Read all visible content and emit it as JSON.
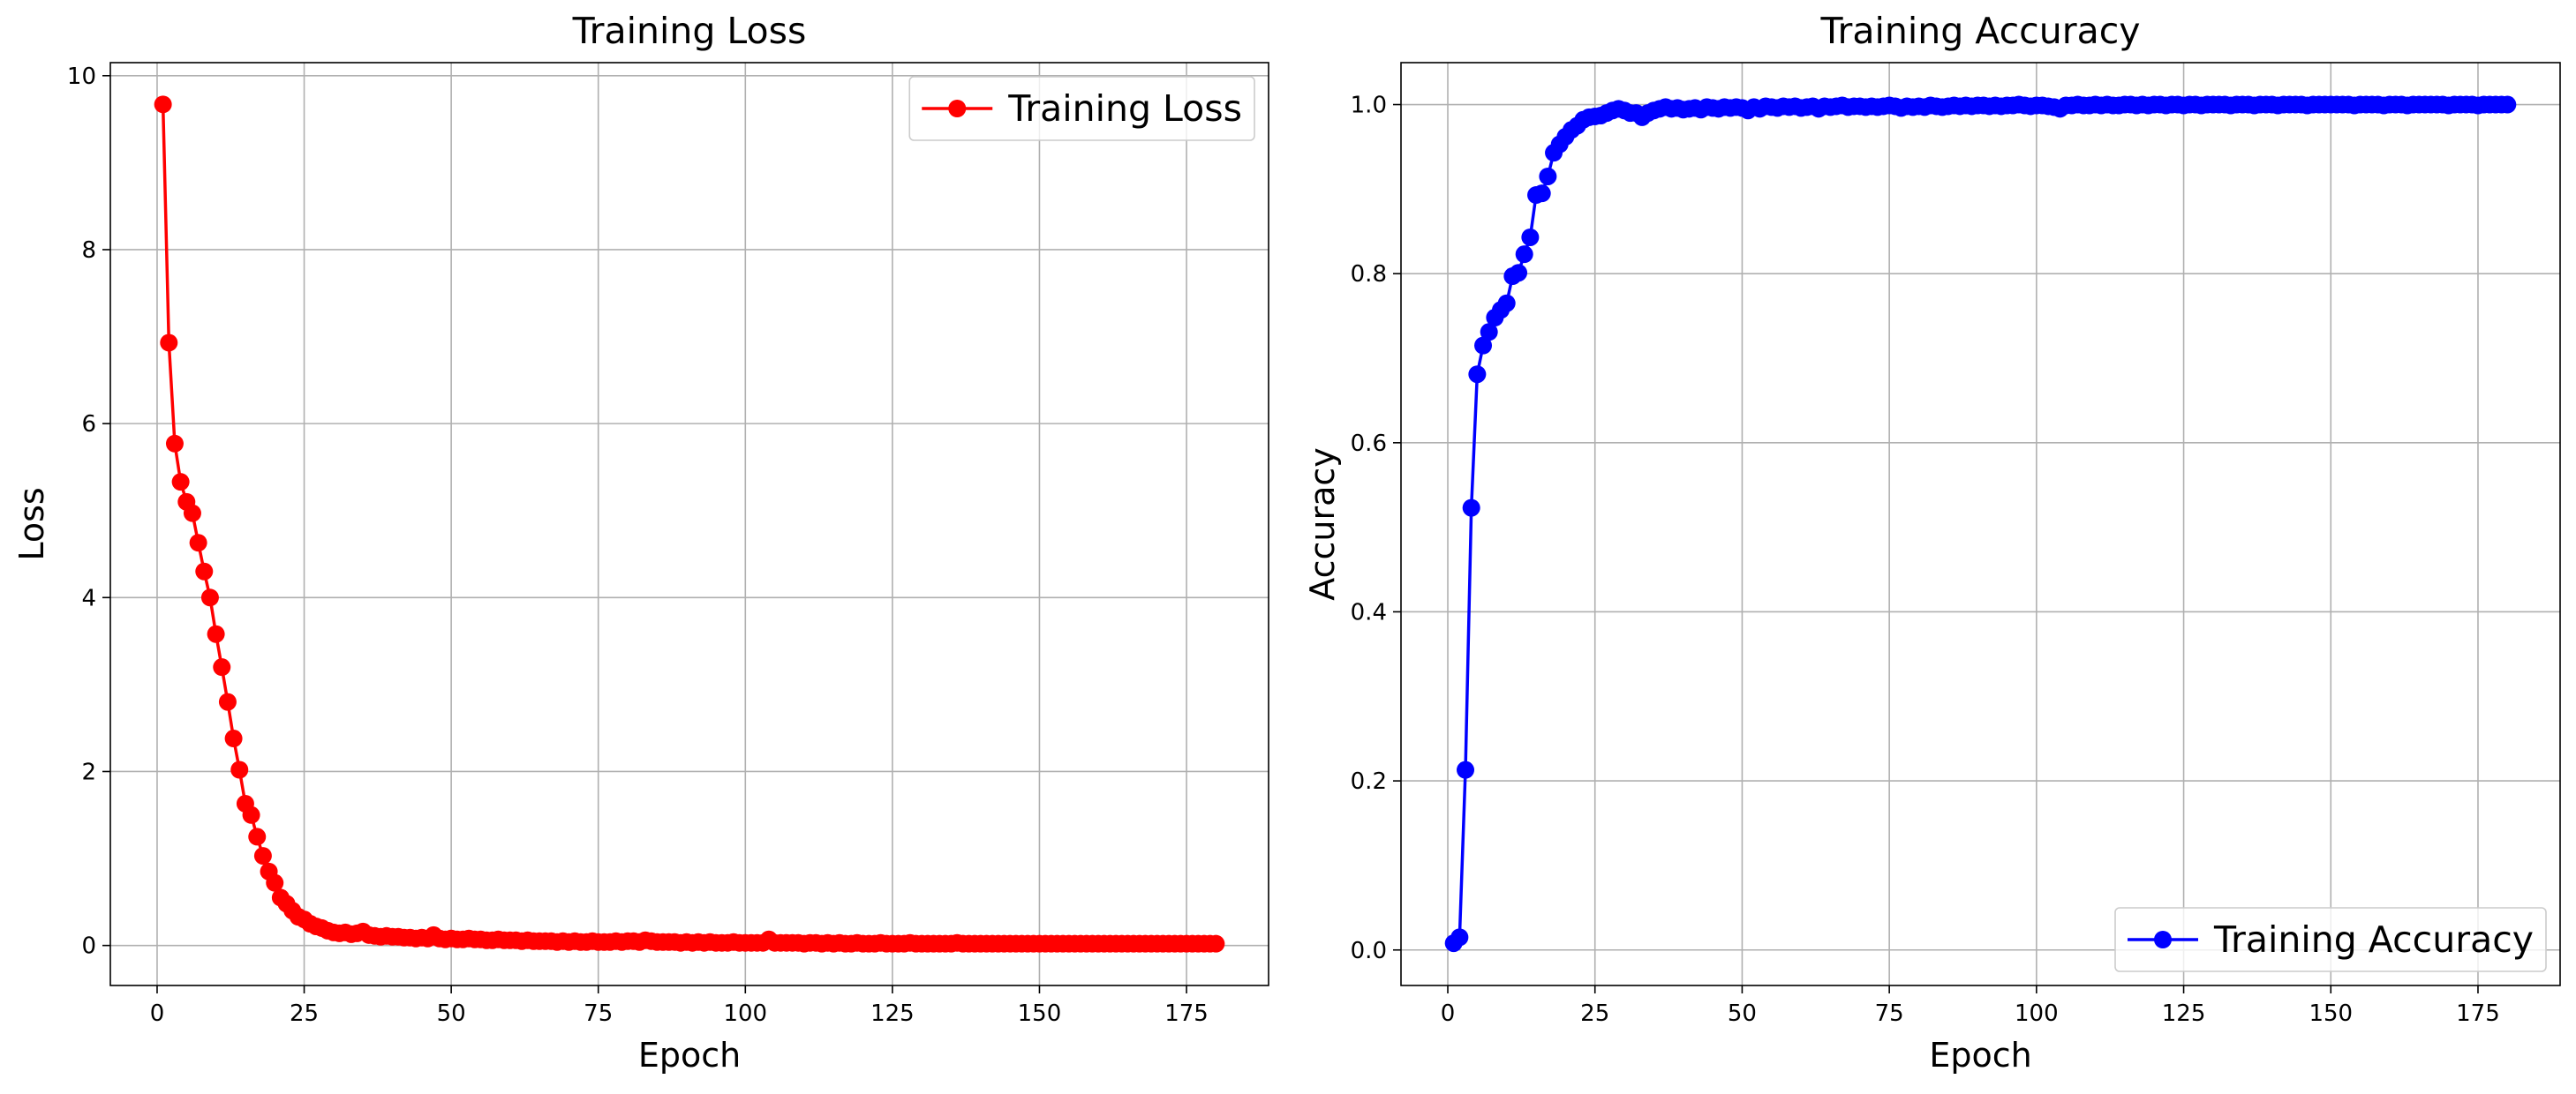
{
  "chart_data": [
    {
      "type": "line",
      "title": "Training Loss",
      "xlabel": "Epoch",
      "ylabel": "Loss",
      "grid": true,
      "legend": "upper right",
      "xlim": [
        -7.95,
        188.95
      ],
      "ylim": [
        -0.46,
        10.15
      ],
      "xticks": [
        0,
        25,
        50,
        75,
        100,
        125,
        150,
        175
      ],
      "yticks": [
        0,
        2,
        4,
        6,
        8,
        10
      ],
      "x": [
        1,
        2,
        3,
        4,
        5,
        6,
        7,
        8,
        9,
        10,
        11,
        12,
        13,
        14,
        15,
        16,
        17,
        18,
        19,
        20,
        21,
        22,
        23,
        24,
        25,
        26,
        27,
        28,
        29,
        30,
        31,
        32,
        33,
        34,
        35,
        36,
        37,
        38,
        39,
        40,
        41,
        42,
        43,
        44,
        45,
        46,
        47,
        48,
        49,
        50,
        51,
        52,
        53,
        54,
        55,
        56,
        57,
        58,
        59,
        60,
        61,
        62,
        63,
        64,
        65,
        66,
        67,
        68,
        69,
        70,
        71,
        72,
        73,
        74,
        75,
        76,
        77,
        78,
        79,
        80,
        81,
        82,
        83,
        84,
        85,
        86,
        87,
        88,
        89,
        90,
        91,
        92,
        93,
        94,
        95,
        96,
        97,
        98,
        99,
        100,
        101,
        102,
        103,
        104,
        105,
        106,
        107,
        108,
        109,
        110,
        111,
        112,
        113,
        114,
        115,
        116,
        117,
        118,
        119,
        120,
        121,
        122,
        123,
        124,
        125,
        126,
        127,
        128,
        129,
        130,
        131,
        132,
        133,
        134,
        135,
        136,
        137,
        138,
        139,
        140,
        141,
        142,
        143,
        144,
        145,
        146,
        147,
        148,
        149,
        150,
        151,
        152,
        153,
        154,
        155,
        156,
        157,
        158,
        159,
        160,
        161,
        162,
        163,
        164,
        165,
        166,
        167,
        168,
        169,
        170,
        171,
        172,
        173,
        174,
        175,
        176,
        177,
        178,
        179,
        180
      ],
      "series": [
        {
          "name": "Training Loss",
          "color": "#ff0000",
          "values": [
            9.67,
            6.93,
            5.77,
            5.33,
            5.1,
            4.97,
            4.63,
            4.3,
            4.0,
            3.58,
            3.2,
            2.8,
            2.38,
            2.02,
            1.63,
            1.5,
            1.25,
            1.03,
            0.85,
            0.72,
            0.55,
            0.48,
            0.4,
            0.33,
            0.3,
            0.25,
            0.22,
            0.2,
            0.17,
            0.15,
            0.14,
            0.15,
            0.13,
            0.14,
            0.16,
            0.12,
            0.11,
            0.1,
            0.11,
            0.1,
            0.1,
            0.09,
            0.09,
            0.08,
            0.09,
            0.08,
            0.12,
            0.08,
            0.07,
            0.08,
            0.07,
            0.07,
            0.08,
            0.07,
            0.07,
            0.06,
            0.06,
            0.07,
            0.06,
            0.06,
            0.06,
            0.05,
            0.06,
            0.05,
            0.05,
            0.05,
            0.05,
            0.04,
            0.05,
            0.04,
            0.05,
            0.04,
            0.04,
            0.05,
            0.04,
            0.04,
            0.04,
            0.05,
            0.04,
            0.05,
            0.05,
            0.04,
            0.06,
            0.05,
            0.04,
            0.04,
            0.04,
            0.04,
            0.03,
            0.04,
            0.03,
            0.04,
            0.03,
            0.04,
            0.03,
            0.03,
            0.03,
            0.04,
            0.03,
            0.03,
            0.03,
            0.03,
            0.03,
            0.07,
            0.03,
            0.03,
            0.03,
            0.03,
            0.03,
            0.02,
            0.03,
            0.03,
            0.02,
            0.03,
            0.02,
            0.03,
            0.02,
            0.02,
            0.03,
            0.02,
            0.02,
            0.02,
            0.03,
            0.02,
            0.02,
            0.02,
            0.02,
            0.03,
            0.02,
            0.02,
            0.02,
            0.02,
            0.02,
            0.02,
            0.02,
            0.03,
            0.02,
            0.02,
            0.02,
            0.02,
            0.02,
            0.02,
            0.02,
            0.02,
            0.02,
            0.02,
            0.02,
            0.02,
            0.02,
            0.02,
            0.02,
            0.02,
            0.02,
            0.02,
            0.02,
            0.02,
            0.02,
            0.02,
            0.02,
            0.02,
            0.02,
            0.02,
            0.02,
            0.02,
            0.02,
            0.02,
            0.02,
            0.02,
            0.02,
            0.02,
            0.02,
            0.02,
            0.02,
            0.02,
            0.02,
            0.02,
            0.02,
            0.02,
            0.02,
            0.02
          ]
        }
      ]
    },
    {
      "type": "line",
      "title": "Training Accuracy",
      "xlabel": "Epoch",
      "ylabel": "Accuracy",
      "grid": true,
      "legend": "lower right",
      "xlim": [
        -7.95,
        188.95
      ],
      "ylim": [
        -0.042,
        1.0496
      ],
      "xticks": [
        0,
        25,
        50,
        75,
        100,
        125,
        150,
        175
      ],
      "yticks": [
        {
          "value": 0,
          "label": "0.0"
        },
        0.2,
        0.4,
        0.6,
        0.8,
        {
          "value": 1,
          "label": "1.0"
        }
      ],
      "x": [
        1,
        2,
        3,
        4,
        5,
        6,
        7,
        8,
        9,
        10,
        11,
        12,
        13,
        14,
        15,
        16,
        17,
        18,
        19,
        20,
        21,
        22,
        23,
        24,
        25,
        26,
        27,
        28,
        29,
        30,
        31,
        32,
        33,
        34,
        35,
        36,
        37,
        38,
        39,
        40,
        41,
        42,
        43,
        44,
        45,
        46,
        47,
        48,
        49,
        50,
        51,
        52,
        53,
        54,
        55,
        56,
        57,
        58,
        59,
        60,
        61,
        62,
        63,
        64,
        65,
        66,
        67,
        68,
        69,
        70,
        71,
        72,
        73,
        74,
        75,
        76,
        77,
        78,
        79,
        80,
        81,
        82,
        83,
        84,
        85,
        86,
        87,
        88,
        89,
        90,
        91,
        92,
        93,
        94,
        95,
        96,
        97,
        98,
        99,
        100,
        101,
        102,
        103,
        104,
        105,
        106,
        107,
        108,
        109,
        110,
        111,
        112,
        113,
        114,
        115,
        116,
        117,
        118,
        119,
        120,
        121,
        122,
        123,
        124,
        125,
        126,
        127,
        128,
        129,
        130,
        131,
        132,
        133,
        134,
        135,
        136,
        137,
        138,
        139,
        140,
        141,
        142,
        143,
        144,
        145,
        146,
        147,
        148,
        149,
        150,
        151,
        152,
        153,
        154,
        155,
        156,
        157,
        158,
        159,
        160,
        161,
        162,
        163,
        164,
        165,
        166,
        167,
        168,
        169,
        170,
        171,
        172,
        173,
        174,
        175,
        176,
        177,
        178,
        179,
        180
      ],
      "series": [
        {
          "name": "Training Accuracy",
          "color": "#0000ff",
          "values": [
            0.008,
            0.015,
            0.213,
            0.523,
            0.681,
            0.715,
            0.731,
            0.748,
            0.757,
            0.765,
            0.797,
            0.801,
            0.823,
            0.843,
            0.893,
            0.895,
            0.915,
            0.943,
            0.953,
            0.962,
            0.97,
            0.975,
            0.982,
            0.985,
            0.986,
            0.987,
            0.99,
            0.993,
            0.995,
            0.993,
            0.99,
            0.99,
            0.985,
            0.99,
            0.993,
            0.995,
            0.997,
            0.995,
            0.996,
            0.994,
            0.995,
            0.996,
            0.994,
            0.997,
            0.996,
            0.995,
            0.997,
            0.996,
            0.997,
            0.996,
            0.993,
            0.997,
            0.995,
            0.998,
            0.997,
            0.996,
            0.998,
            0.997,
            0.998,
            0.996,
            0.997,
            0.998,
            0.995,
            0.998,
            0.997,
            0.998,
            0.999,
            0.997,
            0.998,
            0.998,
            0.997,
            0.998,
            0.997,
            0.998,
            0.999,
            0.998,
            0.996,
            0.998,
            0.997,
            0.998,
            0.997,
            0.999,
            0.998,
            0.997,
            0.998,
            0.999,
            0.998,
            0.999,
            0.998,
            0.999,
            0.999,
            0.998,
            0.999,
            0.998,
            0.999,
            0.999,
            1.0,
            0.999,
            0.998,
            0.999,
            0.999,
            0.998,
            0.997,
            0.995,
            0.999,
            0.999,
            1.0,
            0.999,
            0.999,
            1.0,
            0.999,
            1.0,
            0.999,
            0.999,
            1.0,
            1.0,
            0.999,
            1.0,
            0.999,
            1.0,
            1.0,
            0.999,
            1.0,
            1.0,
            0.999,
            1.0,
            1.0,
            0.999,
            1.0,
            1.0,
            1.0,
            1.0,
            0.999,
            1.0,
            1.0,
            1.0,
            0.999,
            1.0,
            1.0,
            1.0,
            0.999,
            1.0,
            1.0,
            1.0,
            1.0,
            0.999,
            1.0,
            1.0,
            1.0,
            1.0,
            1.0,
            1.0,
            1.0,
            0.999,
            1.0,
            1.0,
            1.0,
            1.0,
            0.999,
            1.0,
            1.0,
            1.0,
            0.999,
            1.0,
            1.0,
            1.0,
            1.0,
            1.0,
            1.0,
            0.999,
            1.0,
            1.0,
            1.0,
            1.0,
            0.999,
            1.0,
            1.0,
            1.0,
            1.0,
            1.0
          ]
        }
      ]
    }
  ]
}
